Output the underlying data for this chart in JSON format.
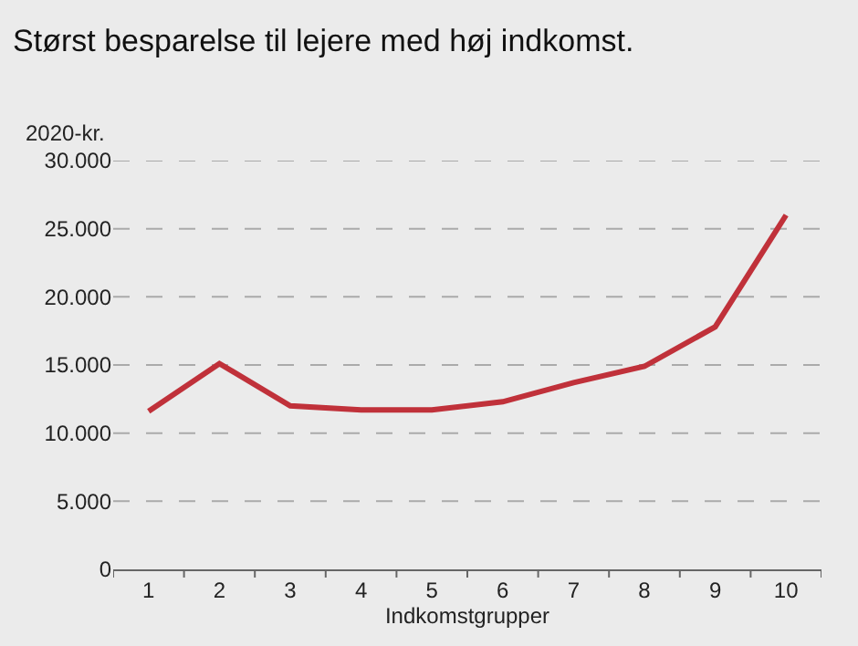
{
  "chart_data": {
    "type": "line",
    "title": "Størst besparelse til lejere med høj indkomst.",
    "xlabel": "Indkomstgrupper",
    "ylabel": "2020-kr.",
    "categories": [
      "1",
      "2",
      "3",
      "4",
      "5",
      "6",
      "7",
      "8",
      "9",
      "10"
    ],
    "series": [
      {
        "color": "#c0313a",
        "values": [
          11600,
          15100,
          12000,
          11700,
          11700,
          12300,
          13700,
          14900,
          17800,
          26000
        ]
      }
    ],
    "ylim": [
      0,
      30000
    ],
    "yticks": [
      0,
      {
        "value": 5000,
        "label": "5.000"
      },
      {
        "value": 10000,
        "label": "10.000"
      },
      {
        "value": 15000,
        "label": "15.000"
      },
      {
        "value": 20000,
        "label": "20.000"
      },
      {
        "value": 25000,
        "label": "25.000"
      },
      {
        "value": 30000,
        "label": "30.000"
      }
    ],
    "grid": "y",
    "marker": "none",
    "line_style": "solid"
  }
}
